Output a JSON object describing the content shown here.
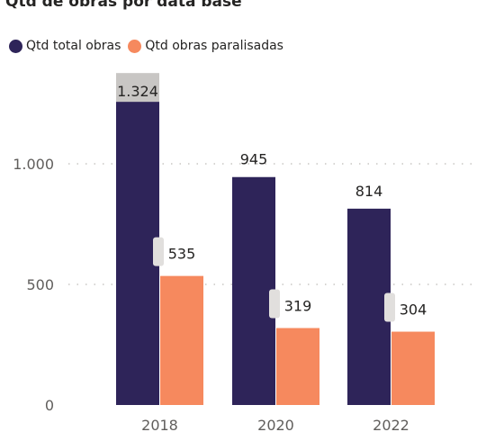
{
  "chart_data": {
    "type": "bar",
    "title": "Qtd de obras por data base",
    "categories": [
      "2018",
      "2020",
      "2022"
    ],
    "series": [
      {
        "name": "Qtd total obras",
        "color": "#2e2459",
        "values": [
          1324,
          945,
          814
        ],
        "labels": [
          "1.324",
          "945",
          "814"
        ]
      },
      {
        "name": "Qtd obras paralisadas",
        "color": "#f6895e",
        "values": [
          535,
          319,
          304
        ],
        "labels": [
          "535",
          "319",
          "304"
        ]
      }
    ],
    "yticks": [
      0,
      500,
      1000
    ],
    "ytick_labels": [
      "0",
      "500",
      "1.000"
    ],
    "ylim": [
      0,
      1400
    ],
    "grid": true,
    "legend": "top-left",
    "xlabel": "",
    "ylabel": ""
  }
}
